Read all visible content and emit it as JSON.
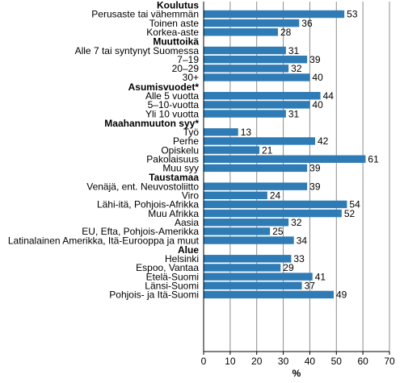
{
  "chart_data": {
    "type": "bar",
    "orientation": "horizontal",
    "xlabel": "%",
    "xlim": [
      0,
      70
    ],
    "xticks": [
      0,
      10,
      20,
      30,
      40,
      50,
      60,
      70
    ],
    "grid": "vertical",
    "bar_color": "#2e7bb5",
    "groups": [
      {
        "title": "Koulutus",
        "items": [
          {
            "label": "Perusaste tai vähemmän",
            "value": 53
          },
          {
            "label": "Toinen aste",
            "value": 36
          },
          {
            "label": "Korkea-aste",
            "value": 28
          }
        ]
      },
      {
        "title": "Muuttoikä",
        "items": [
          {
            "label": "Alle 7 tai syntynyt Suomessa",
            "value": 31
          },
          {
            "label": "7–19",
            "value": 39
          },
          {
            "label": "20–29",
            "value": 32
          },
          {
            "label": "30+",
            "value": 40
          }
        ]
      },
      {
        "title": "Asumisvuodet*",
        "items": [
          {
            "label": "Alle 5 vuotta",
            "value": 44
          },
          {
            "label": "5–10-vuotta",
            "value": 40
          },
          {
            "label": "Yli 10 vuotta",
            "value": 31
          }
        ]
      },
      {
        "title": "Maahanmuuton syy*",
        "items": [
          {
            "label": "Työ",
            "value": 13
          },
          {
            "label": "Perhe",
            "value": 42
          },
          {
            "label": "Opiskelu",
            "value": 21
          },
          {
            "label": "Pakolaisuus",
            "value": 61
          },
          {
            "label": "Muu syy",
            "value": 39
          }
        ]
      },
      {
        "title": "Taustamaa",
        "items": [
          {
            "label": "Venäjä, ent. Neuvostoliitto",
            "value": 39
          },
          {
            "label": "Viro",
            "value": 24
          },
          {
            "label": "Lähi-itä, Pohjois-Afrikka",
            "value": 54
          },
          {
            "label": "Muu Afrikka",
            "value": 52
          },
          {
            "label": "Aasia",
            "value": 32
          },
          {
            "label": "EU, Efta, Pohjois-Amerikka",
            "value": 25
          },
          {
            "label": "Latinalainen Amerikka, Itä-Eurooppa ja muut",
            "value": 34
          }
        ]
      },
      {
        "title": "Alue",
        "items": [
          {
            "label": "Helsinki",
            "value": 33
          },
          {
            "label": "Espoo, Vantaa",
            "value": 29
          },
          {
            "label": "Etelä-Suomi",
            "value": 41
          },
          {
            "label": "Länsi-Suomi",
            "value": 37
          },
          {
            "label": "Pohjois- ja Itä-Suomi",
            "value": 49
          }
        ]
      }
    ]
  }
}
